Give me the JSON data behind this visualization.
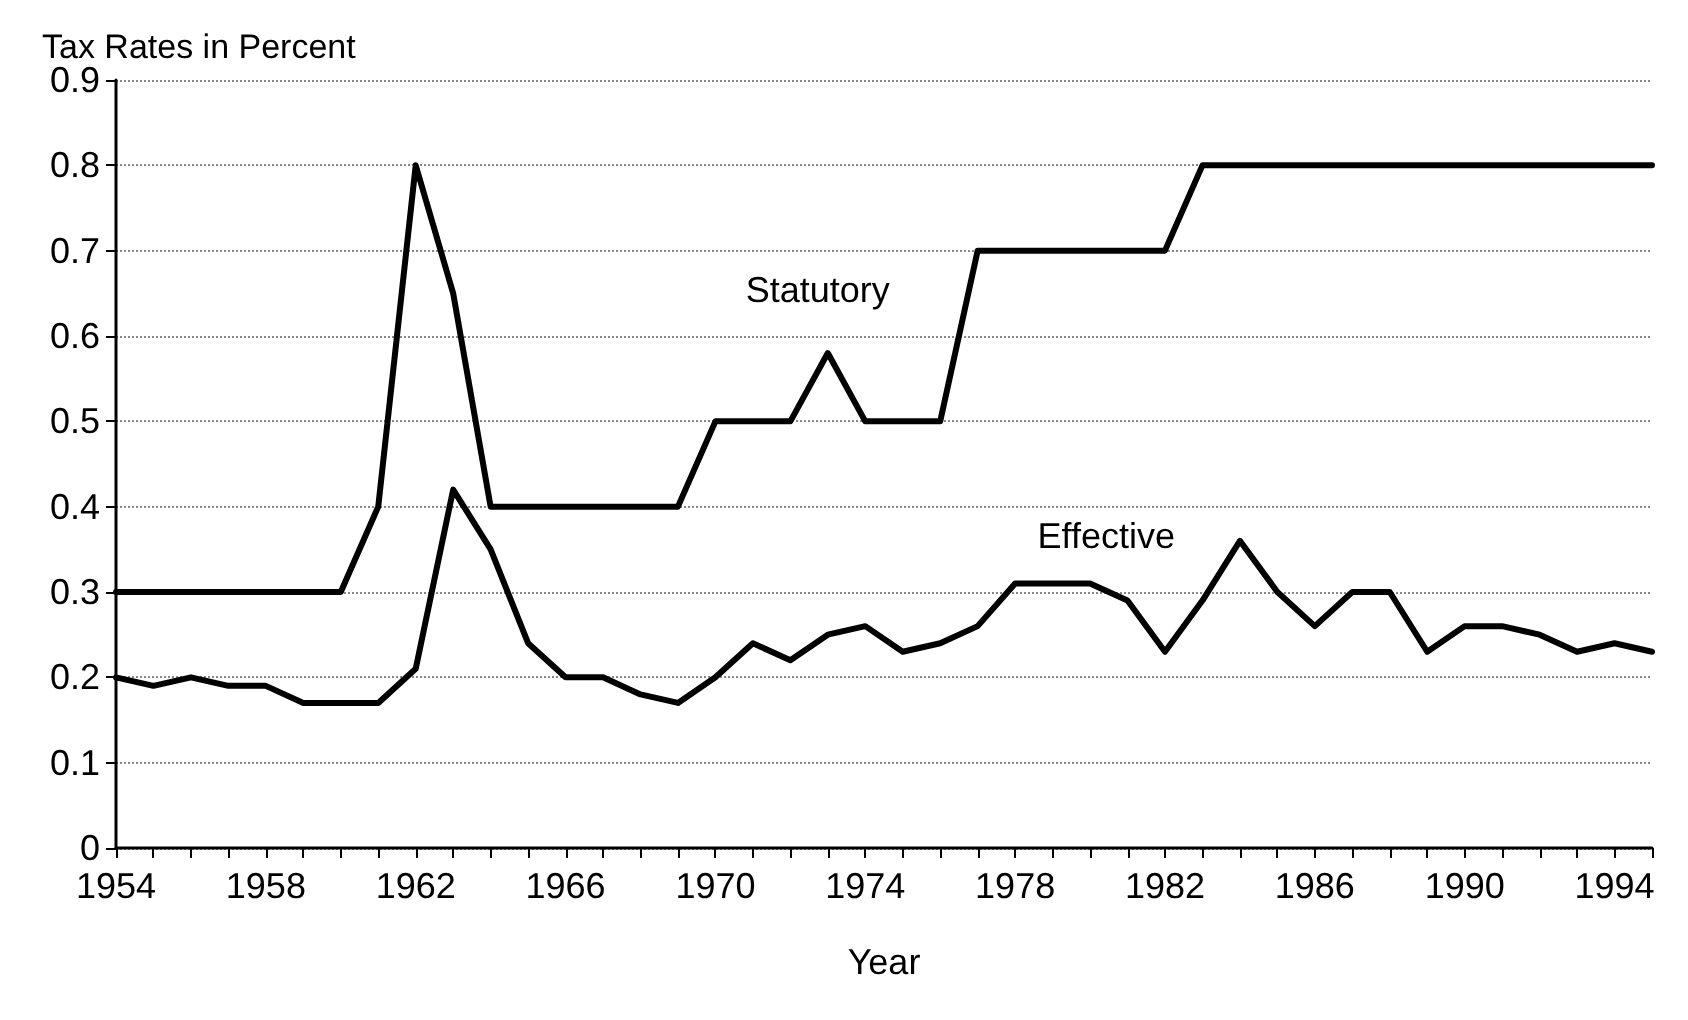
{
  "chart_data": {
    "type": "line",
    "title": "Tax Rates in Percent",
    "xlabel": "Year",
    "x": [
      1954,
      1955,
      1956,
      1957,
      1958,
      1959,
      1960,
      1961,
      1962,
      1963,
      1964,
      1965,
      1966,
      1967,
      1968,
      1969,
      1970,
      1971,
      1972,
      1973,
      1974,
      1975,
      1976,
      1977,
      1978,
      1979,
      1980,
      1981,
      1982,
      1983,
      1984,
      1985,
      1986,
      1987,
      1988,
      1989,
      1990,
      1991,
      1992,
      1993,
      1994,
      1995
    ],
    "series": [
      {
        "name": "Statutory",
        "color": "#000000",
        "values": [
          0.3,
          0.3,
          0.3,
          0.3,
          0.3,
          0.3,
          0.3,
          0.4,
          0.8,
          0.65,
          0.4,
          0.4,
          0.4,
          0.4,
          0.4,
          0.4,
          0.5,
          0.5,
          0.5,
          0.58,
          0.5,
          0.5,
          0.5,
          0.7,
          0.7,
          0.7,
          0.7,
          0.7,
          0.7,
          0.8,
          0.8,
          0.8,
          0.8,
          0.8,
          0.8,
          0.8,
          0.8,
          0.8,
          0.8,
          0.8,
          0.8,
          0.8
        ]
      },
      {
        "name": "Effective",
        "color": "#000000",
        "values": [
          0.2,
          0.19,
          0.2,
          0.19,
          0.19,
          0.17,
          0.17,
          0.17,
          0.21,
          0.42,
          0.35,
          0.24,
          0.2,
          0.2,
          0.18,
          0.17,
          0.2,
          0.24,
          0.22,
          0.25,
          0.26,
          0.23,
          0.24,
          0.26,
          0.31,
          0.31,
          0.31,
          0.29,
          0.23,
          0.29,
          0.36,
          0.3,
          0.26,
          0.3,
          0.3,
          0.23,
          0.26,
          0.26,
          0.25,
          0.23,
          0.24,
          0.23
        ]
      }
    ],
    "xlim": [
      1954,
      1995
    ],
    "xticks": [
      1954,
      1958,
      1962,
      1966,
      1970,
      1974,
      1978,
      1982,
      1986,
      1990,
      1994
    ],
    "ylim": [
      0,
      0.9
    ],
    "yticks": [
      0,
      0.1,
      0.2,
      0.3,
      0.4,
      0.5,
      0.6,
      0.7,
      0.8,
      0.9
    ],
    "grid": "y",
    "legend": false,
    "marker": "none",
    "line_style": "solid"
  }
}
